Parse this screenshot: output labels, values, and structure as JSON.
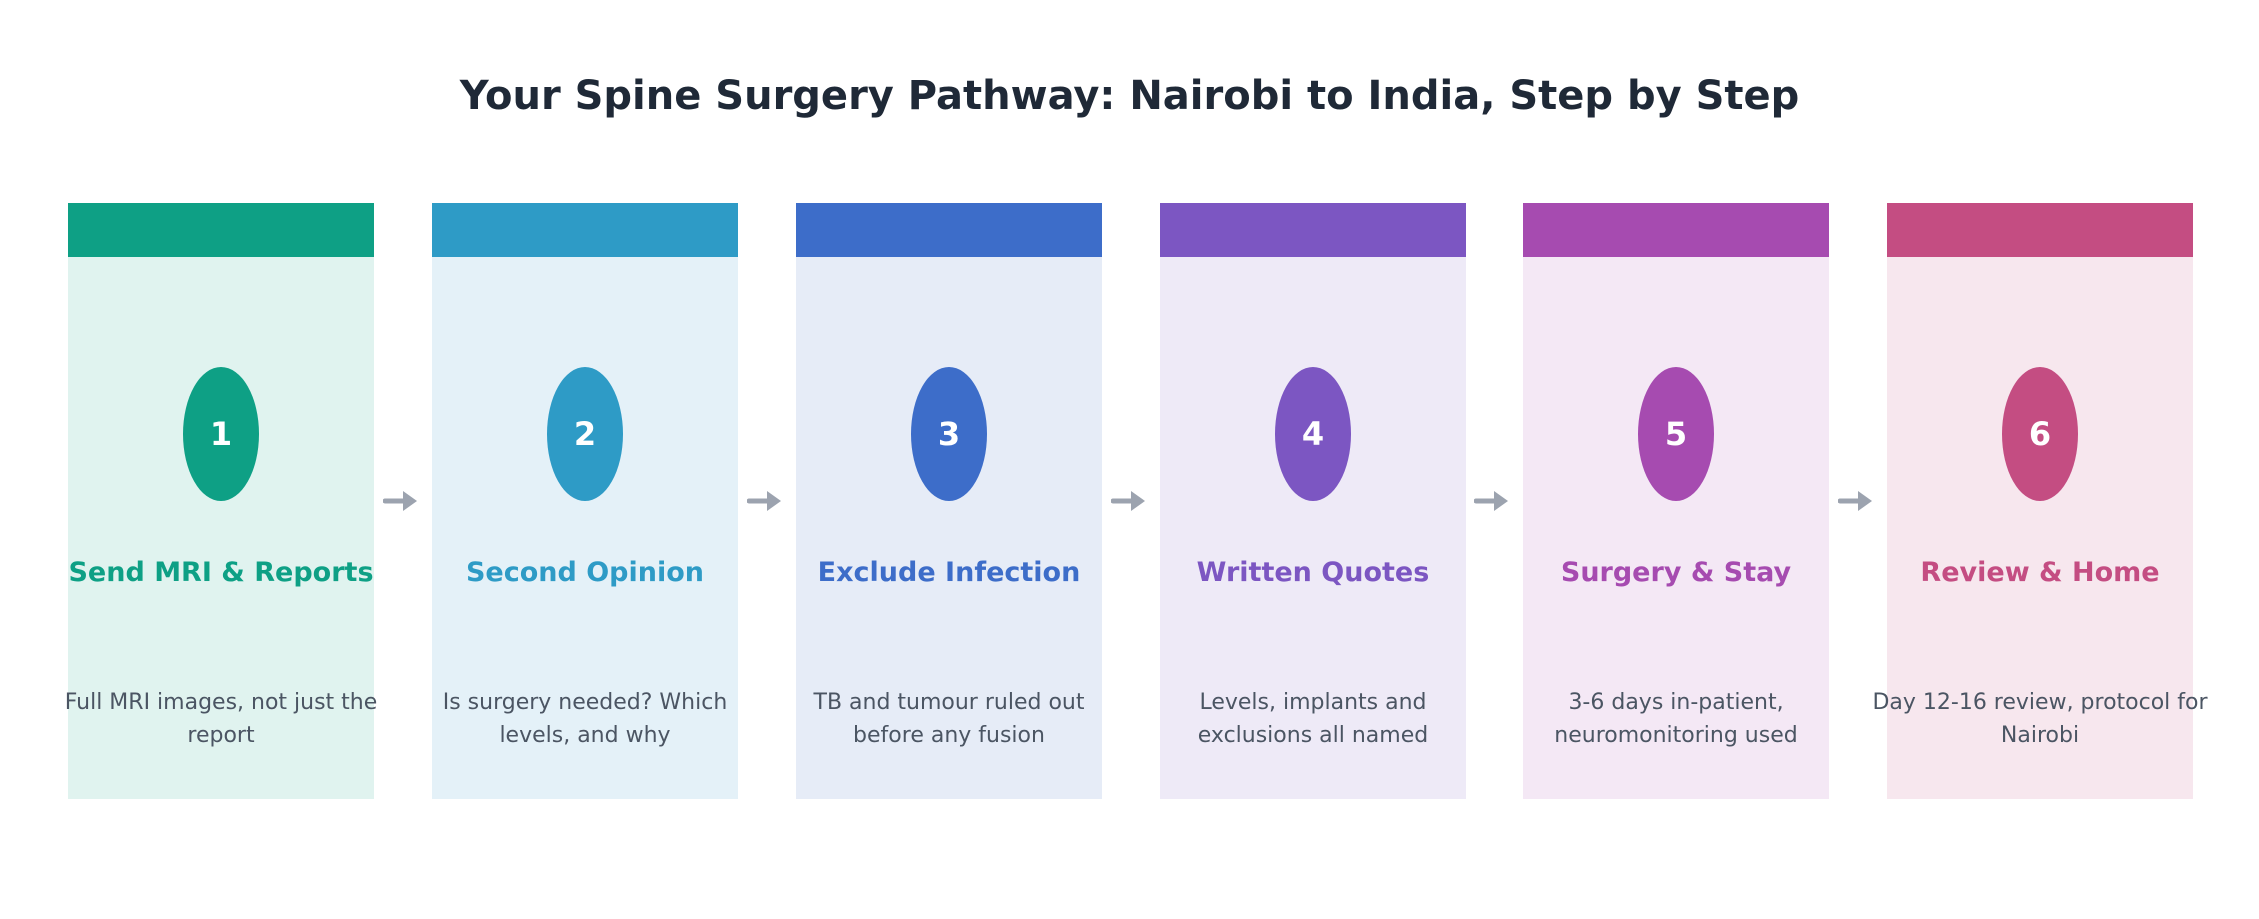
{
  "title": "Your Spine Surgery Pathway: Nairobi to India, Step by Step",
  "steps": [
    {
      "number": "1",
      "heading": "Send MRI & Reports",
      "description": "Full MRI images, not just the report",
      "color": "#0ea085",
      "bg": "#e0f3ef"
    },
    {
      "number": "2",
      "heading": "Second Opinion",
      "description": "Is surgery needed? Which levels, and why",
      "color": "#2e9bc6",
      "bg": "#e4f1f8"
    },
    {
      "number": "3",
      "heading": "Exclude Infection",
      "description": "TB and tumour ruled out before any fusion",
      "color": "#3d6dc9",
      "bg": "#e6ecf7"
    },
    {
      "number": "4",
      "heading": "Written Quotes",
      "description": "Levels, implants and exclusions all named",
      "color": "#7c56c2",
      "bg": "#eeeaf7"
    },
    {
      "number": "5",
      "heading": "Surgery & Stay",
      "description": "3-6 days in-patient, neuromonitoring used",
      "color": "#a64bb0",
      "bg": "#f4e8f5"
    },
    {
      "number": "6",
      "heading": "Review & Home",
      "description": "Day 12-16 review, protocol for Nairobi",
      "color": "#c44d82",
      "bg": "#f7e7ee"
    }
  ],
  "arrow_color": "#9ca3af"
}
